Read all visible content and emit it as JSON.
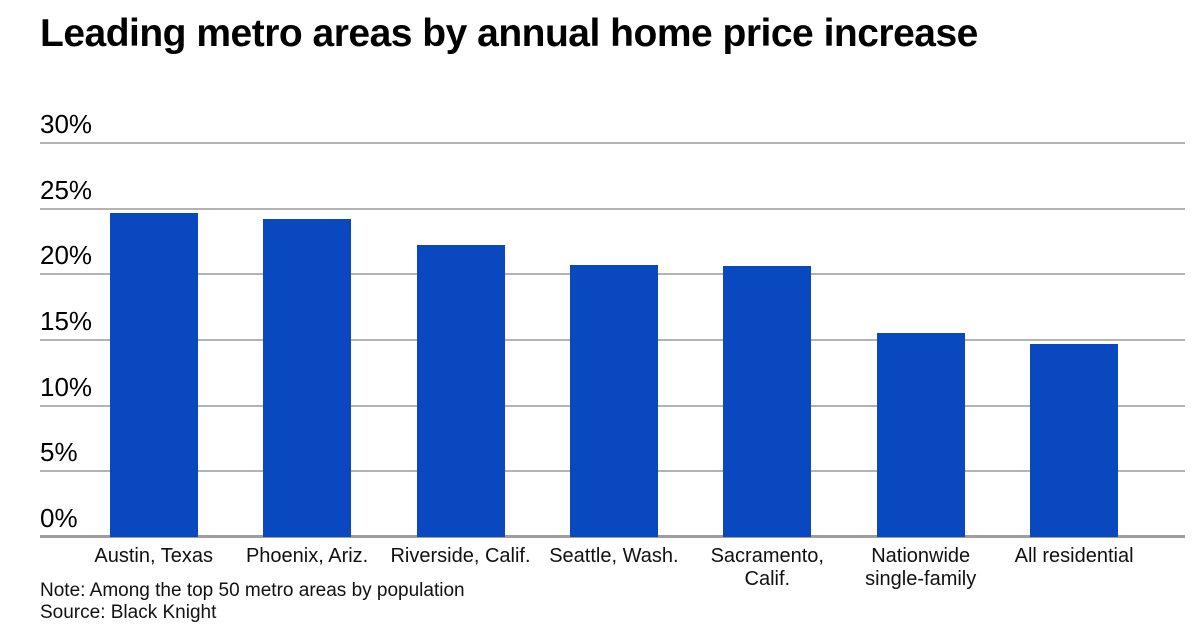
{
  "title": "Leading metro areas by annual home price increase",
  "note": "Note: Among the top 50 metro areas by population",
  "source": "Source: Black Knight",
  "colors": {
    "bar": "#0a48c0",
    "gridline": "#b3b3b3",
    "baseline": "#9e9e9e",
    "text": "#111111"
  },
  "chart_data": {
    "type": "bar",
    "title": "Leading metro areas by annual home price increase",
    "categories": [
      "Austin, Texas",
      "Phoenix, Ariz.",
      "Riverside, Calif.",
      "Seattle, Wash.",
      "Sacramento,\nCalif.",
      "Nationwide\nsingle-family",
      "All residential"
    ],
    "values": [
      24.7,
      24.2,
      22.2,
      20.7,
      20.6,
      15.5,
      14.7
    ],
    "unit": "%",
    "xlabel": "",
    "ylabel": "",
    "ylim": [
      0,
      30
    ],
    "yticks": [
      0,
      5,
      10,
      15,
      20,
      25,
      30
    ],
    "ytick_format": "{v}%",
    "grid": true,
    "legend_position": "none",
    "note": "Note: Among the top 50 metro areas by population",
    "source": "Source: Black Knight"
  }
}
